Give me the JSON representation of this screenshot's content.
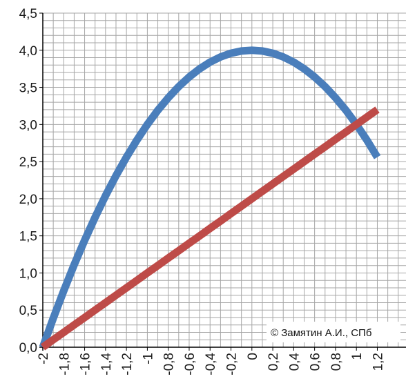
{
  "chart_data": {
    "type": "line",
    "x": [
      -2.0,
      -1.9,
      -1.8,
      -1.7,
      -1.6,
      -1.5,
      -1.4,
      -1.3,
      -1.2,
      -1.1,
      -1.0,
      -0.9,
      -0.8,
      -0.7,
      -0.6,
      -0.5,
      -0.4,
      -0.3,
      -0.2,
      -0.1,
      0.0,
      0.1,
      0.2,
      0.3,
      0.4,
      0.5,
      0.6,
      0.7,
      0.8,
      0.9,
      1.0,
      1.1,
      1.2
    ],
    "series": [
      {
        "color": "#4a7ebb",
        "values": [
          0.0,
          0.39,
          0.76,
          1.11,
          1.44,
          1.75,
          2.04,
          2.31,
          2.56,
          2.79,
          3.0,
          3.19,
          3.36,
          3.51,
          3.64,
          3.75,
          3.84,
          3.91,
          3.96,
          3.99,
          4.0,
          3.99,
          3.96,
          3.91,
          3.84,
          3.75,
          3.64,
          3.51,
          3.36,
          3.19,
          3.0,
          2.79,
          2.56
        ]
      },
      {
        "color": "#be4b48",
        "values": [
          0.0,
          0.1,
          0.2,
          0.3,
          0.4,
          0.5,
          0.6,
          0.7,
          0.8,
          0.9,
          1.0,
          1.1,
          1.2,
          1.3,
          1.4,
          1.5,
          1.6,
          1.7,
          1.8,
          1.9,
          2.0,
          2.1,
          2.2,
          2.3,
          2.4,
          2.5,
          2.6,
          2.7,
          2.8,
          2.9,
          3.0,
          3.1,
          3.2
        ]
      }
    ],
    "xlim": [
      -2.0,
      1.2
    ],
    "ylim": [
      0.0,
      4.5
    ],
    "x_tick_labels": [
      "-2",
      "-1,8",
      "-1,6",
      "-1,4",
      "-1,2",
      "-1",
      "-0,8",
      "-0,6",
      "-0,4",
      "-0,2",
      "0",
      "0,2",
      "0,4",
      "0,6",
      "0,8",
      "1",
      "1,2"
    ],
    "y_tick_labels": [
      "0,0",
      "0,5",
      "1,0",
      "1,5",
      "2,0",
      "2,5",
      "3,0",
      "3,5",
      "4,0",
      "4,5"
    ],
    "grid": true,
    "title": "",
    "xlabel": "",
    "ylabel": ""
  },
  "annotation": {
    "text": "© Замятин А.И., СПб"
  },
  "colors": {
    "grid": "#a6a6a6",
    "axis": "#000000"
  }
}
